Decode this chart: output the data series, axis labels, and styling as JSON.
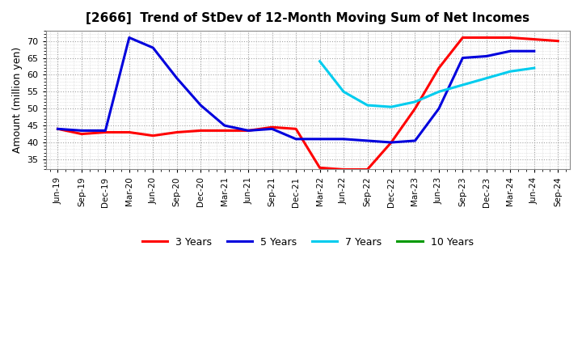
{
  "title": "[2666]  Trend of StDev of 12-Month Moving Sum of Net Incomes",
  "ylabel": "Amount (million yen)",
  "background_color": "#ffffff",
  "grid_color": "#aaaaaa",
  "plot_bg_color": "#ffffff",
  "ylim": [
    32,
    73
  ],
  "yticks": [
    35,
    40,
    45,
    50,
    55,
    60,
    65,
    70
  ],
  "legend_labels": [
    "3 Years",
    "5 Years",
    "7 Years",
    "10 Years"
  ],
  "legend_colors": [
    "#ff0000",
    "#0000dd",
    "#00ccee",
    "#009900"
  ],
  "x_labels": [
    "Jun-19",
    "Sep-19",
    "Dec-19",
    "Mar-20",
    "Jun-20",
    "Sep-20",
    "Dec-20",
    "Mar-21",
    "Jun-21",
    "Sep-21",
    "Dec-21",
    "Mar-22",
    "Jun-22",
    "Sep-22",
    "Dec-22",
    "Mar-23",
    "Jun-23",
    "Sep-23",
    "Dec-23",
    "Mar-24",
    "Jun-24",
    "Sep-24"
  ],
  "series_3yr": {
    "indices": [
      0,
      1,
      2,
      3,
      4,
      5,
      6,
      7,
      8,
      9,
      10,
      11,
      12,
      13,
      14,
      15,
      16,
      17,
      18,
      19,
      20,
      21
    ],
    "values": [
      44,
      42.5,
      43,
      43,
      42,
      43,
      43.5,
      43.5,
      43.5,
      44.5,
      44,
      32.5,
      32,
      32,
      40,
      50,
      62,
      71,
      71,
      71,
      70.5,
      70
    ]
  },
  "series_5yr": {
    "indices": [
      0,
      1,
      2,
      3,
      4,
      5,
      6,
      7,
      8,
      9,
      10,
      11,
      12,
      13,
      14,
      15,
      16,
      17,
      18,
      19,
      20
    ],
    "values": [
      44,
      43.5,
      43.5,
      71,
      68,
      59,
      51,
      45,
      43.5,
      44,
      41,
      41,
      41,
      40.5,
      40,
      40.5,
      50,
      65,
      65.5,
      67,
      67
    ]
  },
  "series_7yr": {
    "indices": [
      11,
      12,
      13,
      14,
      15,
      16,
      17,
      18,
      19,
      20
    ],
    "values": [
      64,
      55,
      51,
      50.5,
      52,
      55,
      57,
      59,
      61,
      62
    ]
  },
  "series_10yr": {
    "indices": [],
    "values": []
  }
}
